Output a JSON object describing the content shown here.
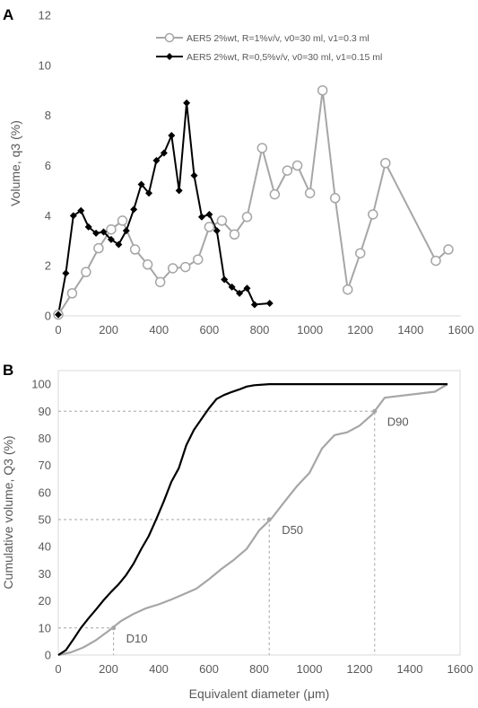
{
  "chart_data": [
    {
      "panel_label": "A",
      "type": "line",
      "xlabel": "",
      "ylabel": "Volume, q3 (%)",
      "xlim": [
        0,
        1600
      ],
      "ylim": [
        0,
        12
      ],
      "xticks": [
        "0",
        "200",
        "400",
        "600",
        "800",
        "1000",
        "1200",
        "1400",
        "1600"
      ],
      "yticks": [
        "0",
        "2",
        "4",
        "6",
        "8",
        "10",
        "12"
      ],
      "grid": false,
      "legend_position": "top-right",
      "series": [
        {
          "name": "AER5 2%wt, R=1%v/v, v0=30 ml, v1=0.3 ml",
          "color": "#a6a6a6",
          "marker": "open-circle",
          "x": [
            0,
            55,
            110,
            160,
            210,
            255,
            305,
            355,
            405,
            455,
            505,
            555,
            600,
            650,
            700,
            750,
            810,
            860,
            910,
            950,
            1000,
            1050,
            1100,
            1150,
            1200,
            1250,
            1300,
            1500,
            1550
          ],
          "y": [
            0.05,
            0.9,
            1.75,
            2.7,
            3.45,
            3.8,
            2.65,
            2.05,
            1.35,
            1.9,
            1.95,
            2.25,
            3.55,
            3.8,
            3.25,
            3.95,
            6.7,
            4.85,
            5.8,
            6.0,
            4.9,
            9.0,
            4.7,
            1.05,
            2.5,
            4.05,
            6.1,
            2.2,
            2.65
          ]
        },
        {
          "name": "AER5 2%wt, R=0,5%v/v, v0=30 ml, v1=0.15 ml",
          "color": "#000000",
          "marker": "filled-diamond",
          "x": [
            0,
            30,
            60,
            90,
            120,
            150,
            180,
            210,
            240,
            270,
            300,
            330,
            360,
            390,
            420,
            450,
            480,
            510,
            540,
            570,
            600,
            630,
            660,
            690,
            720,
            750,
            780,
            840
          ],
          "y": [
            0.05,
            1.7,
            4.0,
            4.2,
            3.55,
            3.3,
            3.35,
            3.05,
            2.85,
            3.4,
            4.25,
            5.25,
            4.9,
            6.2,
            6.5,
            7.2,
            5.0,
            8.5,
            5.6,
            3.95,
            4.05,
            3.4,
            1.45,
            1.15,
            0.9,
            1.1,
            0.45,
            0.5
          ]
        }
      ]
    },
    {
      "panel_label": "B",
      "type": "line",
      "xlabel": "Equivalent diameter (μm)",
      "ylabel": "Cumulative volume, Q3 (%)",
      "xlim": [
        0,
        1600
      ],
      "ylim": [
        0,
        105
      ],
      "xticks": [
        "0",
        "200",
        "400",
        "600",
        "800",
        "1000",
        "1200",
        "1400",
        "1600"
      ],
      "yticks": [
        "0",
        "10",
        "20",
        "30",
        "40",
        "50",
        "60",
        "70",
        "80",
        "90",
        "100"
      ],
      "grid": false,
      "series": [
        {
          "color": "#a6a6a6",
          "x": [
            0,
            50,
            100,
            150,
            200,
            250,
            300,
            350,
            400,
            450,
            500,
            550,
            600,
            650,
            700,
            750,
            800,
            850,
            900,
            950,
            1000,
            1050,
            1100,
            1150,
            1200,
            1250,
            1300,
            1500,
            1550
          ],
          "y": [
            0,
            1,
            2.8,
            5.5,
            8.9,
            12.6,
            15.2,
            17.3,
            18.7,
            20.5,
            22.5,
            24.5,
            28,
            31.8,
            35.2,
            39.2,
            46,
            50.5,
            56.5,
            62.3,
            67.2,
            76.2,
            81.2,
            82.2,
            84.7,
            88.8,
            95,
            97.2,
            100
          ]
        },
        {
          "color": "#000000",
          "x": [
            0,
            30,
            60,
            90,
            120,
            150,
            180,
            210,
            240,
            270,
            300,
            330,
            360,
            390,
            420,
            450,
            480,
            510,
            540,
            570,
            600,
            630,
            660,
            690,
            720,
            750,
            780,
            840,
            1550
          ],
          "y": [
            0,
            1.8,
            5.8,
            10,
            13.5,
            16.8,
            20.2,
            23.3,
            26.1,
            29.5,
            33.8,
            39.1,
            43.9,
            50.1,
            56.7,
            63.9,
            69,
            77.5,
            83.1,
            87.1,
            91.1,
            94.5,
            96,
            97.1,
            98,
            99.1,
            99.6,
            100,
            100
          ]
        }
      ],
      "annotations": [
        {
          "label": "D10",
          "x": 220,
          "y": 10
        },
        {
          "label": "D50",
          "x": 840,
          "y": 50
        },
        {
          "label": "D90",
          "x": 1260,
          "y": 90
        }
      ]
    }
  ]
}
